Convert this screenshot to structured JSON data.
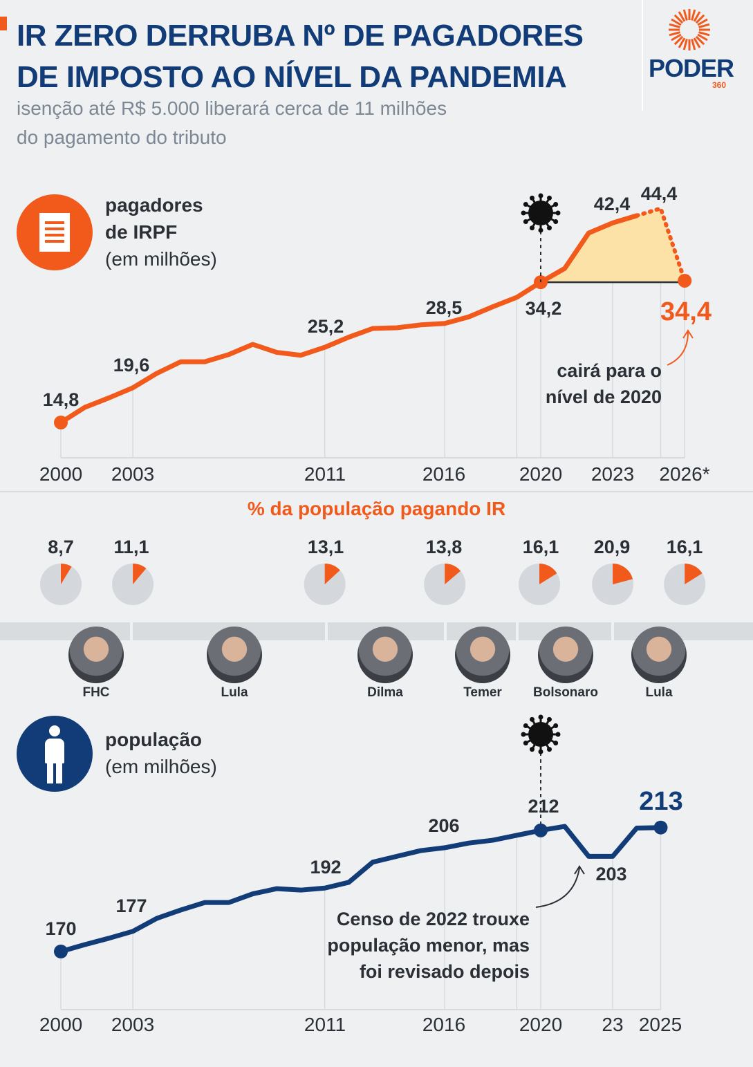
{
  "header": {
    "title_line1": "IR ZERO DERRUBA Nº DE PAGADORES",
    "title_line2": "DE IMPOSTO AO NÍVEL DA PANDEMIA",
    "subtitle_line1": "isenção até R$ 5.000 liberará cerca de 11 milhões",
    "subtitle_line2": "do pagamento do tributo"
  },
  "logo": {
    "word": "PODER",
    "number": "360"
  },
  "colors": {
    "orange": "#f25a1c",
    "navy": "#123c77",
    "fill": "#fde2a8",
    "pie_bg": "#d4d8dc"
  },
  "chart_data": [
    {
      "type": "line",
      "label_line1": "pagadores",
      "label_line2": "de IRPF",
      "label_line3": "(em milhões)",
      "icon": "document-icon",
      "color": "#f25a1c",
      "x_ticks": [
        "2000",
        "2003",
        "2011",
        "2016",
        "2020",
        "2023",
        "2026*"
      ],
      "x": [
        2000,
        2001,
        2002,
        2003,
        2004,
        2005,
        2006,
        2007,
        2008,
        2009,
        2010,
        2011,
        2012,
        2013,
        2014,
        2015,
        2016,
        2017,
        2018,
        2019,
        2020,
        2021,
        2022,
        2023,
        2024,
        2025,
        2026
      ],
      "values": [
        14.8,
        16.9,
        18.2,
        19.6,
        21.6,
        23.2,
        23.2,
        24.2,
        25.6,
        24.5,
        24.1,
        25.2,
        26.6,
        27.8,
        27.9,
        28.3,
        28.5,
        29.4,
        30.8,
        32.1,
        34.2,
        36.1,
        41.0,
        42.4,
        43.4,
        44.4,
        34.4
      ],
      "projected_from": 2024,
      "reference_level": 34.2,
      "labels": [
        {
          "x": 2000,
          "text": "14,8"
        },
        {
          "x": 2003,
          "text": "19,6"
        },
        {
          "x": 2011,
          "text": "25,2"
        },
        {
          "x": 2016,
          "text": "28,5"
        },
        {
          "x": 2020,
          "text": "34,2"
        },
        {
          "x": 2023,
          "text": "42,4"
        },
        {
          "x": 2025,
          "text": "44,4"
        },
        {
          "x": 2026,
          "text": "34,4"
        }
      ],
      "event_marker": {
        "x": 2020,
        "icon": "virus-icon"
      },
      "annotation_line1": "cairá para o",
      "annotation_line2": "nível de 2020"
    },
    {
      "type": "pie",
      "title": "% da população pagando IR",
      "items": [
        {
          "x": 2000,
          "value": 8.7,
          "text": "8,7"
        },
        {
          "x": 2003,
          "value": 11.1,
          "text": "11,1"
        },
        {
          "x": 2011,
          "value": 13.1,
          "text": "13,1"
        },
        {
          "x": 2016,
          "value": 13.8,
          "text": "13,8"
        },
        {
          "x": 2020,
          "value": 16.1,
          "text": "16,1"
        },
        {
          "x": 2023,
          "value": 20.9,
          "text": "20,9"
        },
        {
          "x": 2026,
          "value": 16.1,
          "text": "16,1"
        }
      ]
    },
    {
      "type": "line",
      "label_line1": "população",
      "label_line2": "(em milhões)",
      "icon": "person-icon",
      "color": "#123c77",
      "x_ticks": [
        "2000",
        "2003",
        "2011",
        "2016",
        "2020",
        "23",
        "2025"
      ],
      "x": [
        2000,
        2001,
        2002,
        2003,
        2004,
        2005,
        2006,
        2007,
        2008,
        2009,
        2010,
        2011,
        2012,
        2013,
        2014,
        2015,
        2016,
        2017,
        2018,
        2019,
        2020,
        2021,
        2022,
        2023,
        2024,
        2025
      ],
      "values": [
        170,
        172.4,
        174.6,
        177,
        181.5,
        184.4,
        187,
        187,
        190,
        191.8,
        191.3,
        192,
        194,
        201,
        203,
        205,
        206,
        207.6,
        208.6,
        210.3,
        212,
        213.4,
        203,
        203,
        212.8,
        213
      ],
      "labels": [
        {
          "x": 2000,
          "text": "170"
        },
        {
          "x": 2003,
          "text": "177"
        },
        {
          "x": 2011,
          "text": "192"
        },
        {
          "x": 2016,
          "text": "206"
        },
        {
          "x": 2020,
          "text": "212"
        },
        {
          "x": 2023,
          "text": "203"
        },
        {
          "x": 2025,
          "text": "213"
        }
      ],
      "event_marker": {
        "x": 2020,
        "icon": "virus-icon"
      },
      "annotation_line1": "Censo de 2022 trouxe",
      "annotation_line2": "população menor, mas",
      "annotation_line3": "foi revisado depois"
    }
  ],
  "presidents": [
    {
      "name": "FHC"
    },
    {
      "name": "Lula"
    },
    {
      "name": "Dilma"
    },
    {
      "name": "Temer"
    },
    {
      "name": "Bolsonaro"
    },
    {
      "name": "Lula"
    }
  ]
}
